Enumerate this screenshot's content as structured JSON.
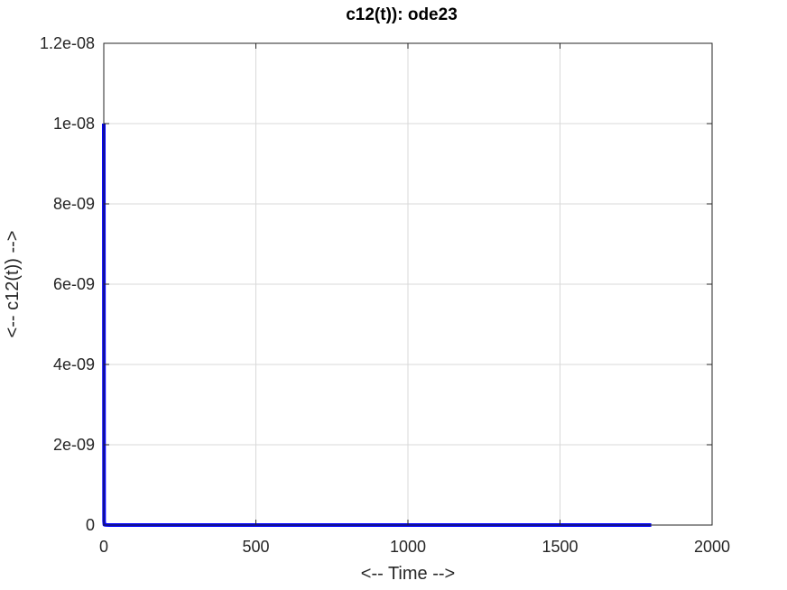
{
  "chart_data": {
    "type": "line",
    "title": "c12(t)): ode23",
    "xlabel": "<-- Time -->",
    "ylabel": "<-- c12(t)) -->",
    "xlim": [
      0,
      2000
    ],
    "ylim": [
      0,
      1.2e-08
    ],
    "grid": true,
    "xticks": [
      0,
      500,
      1000,
      1500,
      2000
    ],
    "xtick_labels": [
      "0",
      "500",
      "1000",
      "1500",
      "2000"
    ],
    "yticks": [
      0,
      2e-09,
      4e-09,
      6e-09,
      8e-09,
      1e-08,
      1.2e-08
    ],
    "ytick_labels": [
      "0",
      "2e-09",
      "4e-09",
      "6e-09",
      "8e-09",
      "1e-08",
      "1.2e-08"
    ],
    "series": [
      {
        "name": "c12(t)",
        "color": "#0000ff",
        "x": [
          0,
          1,
          2,
          5,
          10,
          20,
          50,
          100,
          200,
          300,
          500,
          800,
          1000,
          1200,
          1500,
          1700,
          1800
        ],
        "y": [
          1e-08,
          1e-10,
          1e-11,
          5e-12,
          2e-12,
          1e-12,
          5e-13,
          3e-13,
          2e-13,
          1.5e-13,
          1e-13,
          8e-14,
          7e-14,
          6e-14,
          5e-14,
          4e-14,
          4e-14
        ]
      }
    ]
  },
  "colors": {
    "axis": "#262626",
    "grid": "#d9d9d9",
    "line": "#0000ff"
  }
}
